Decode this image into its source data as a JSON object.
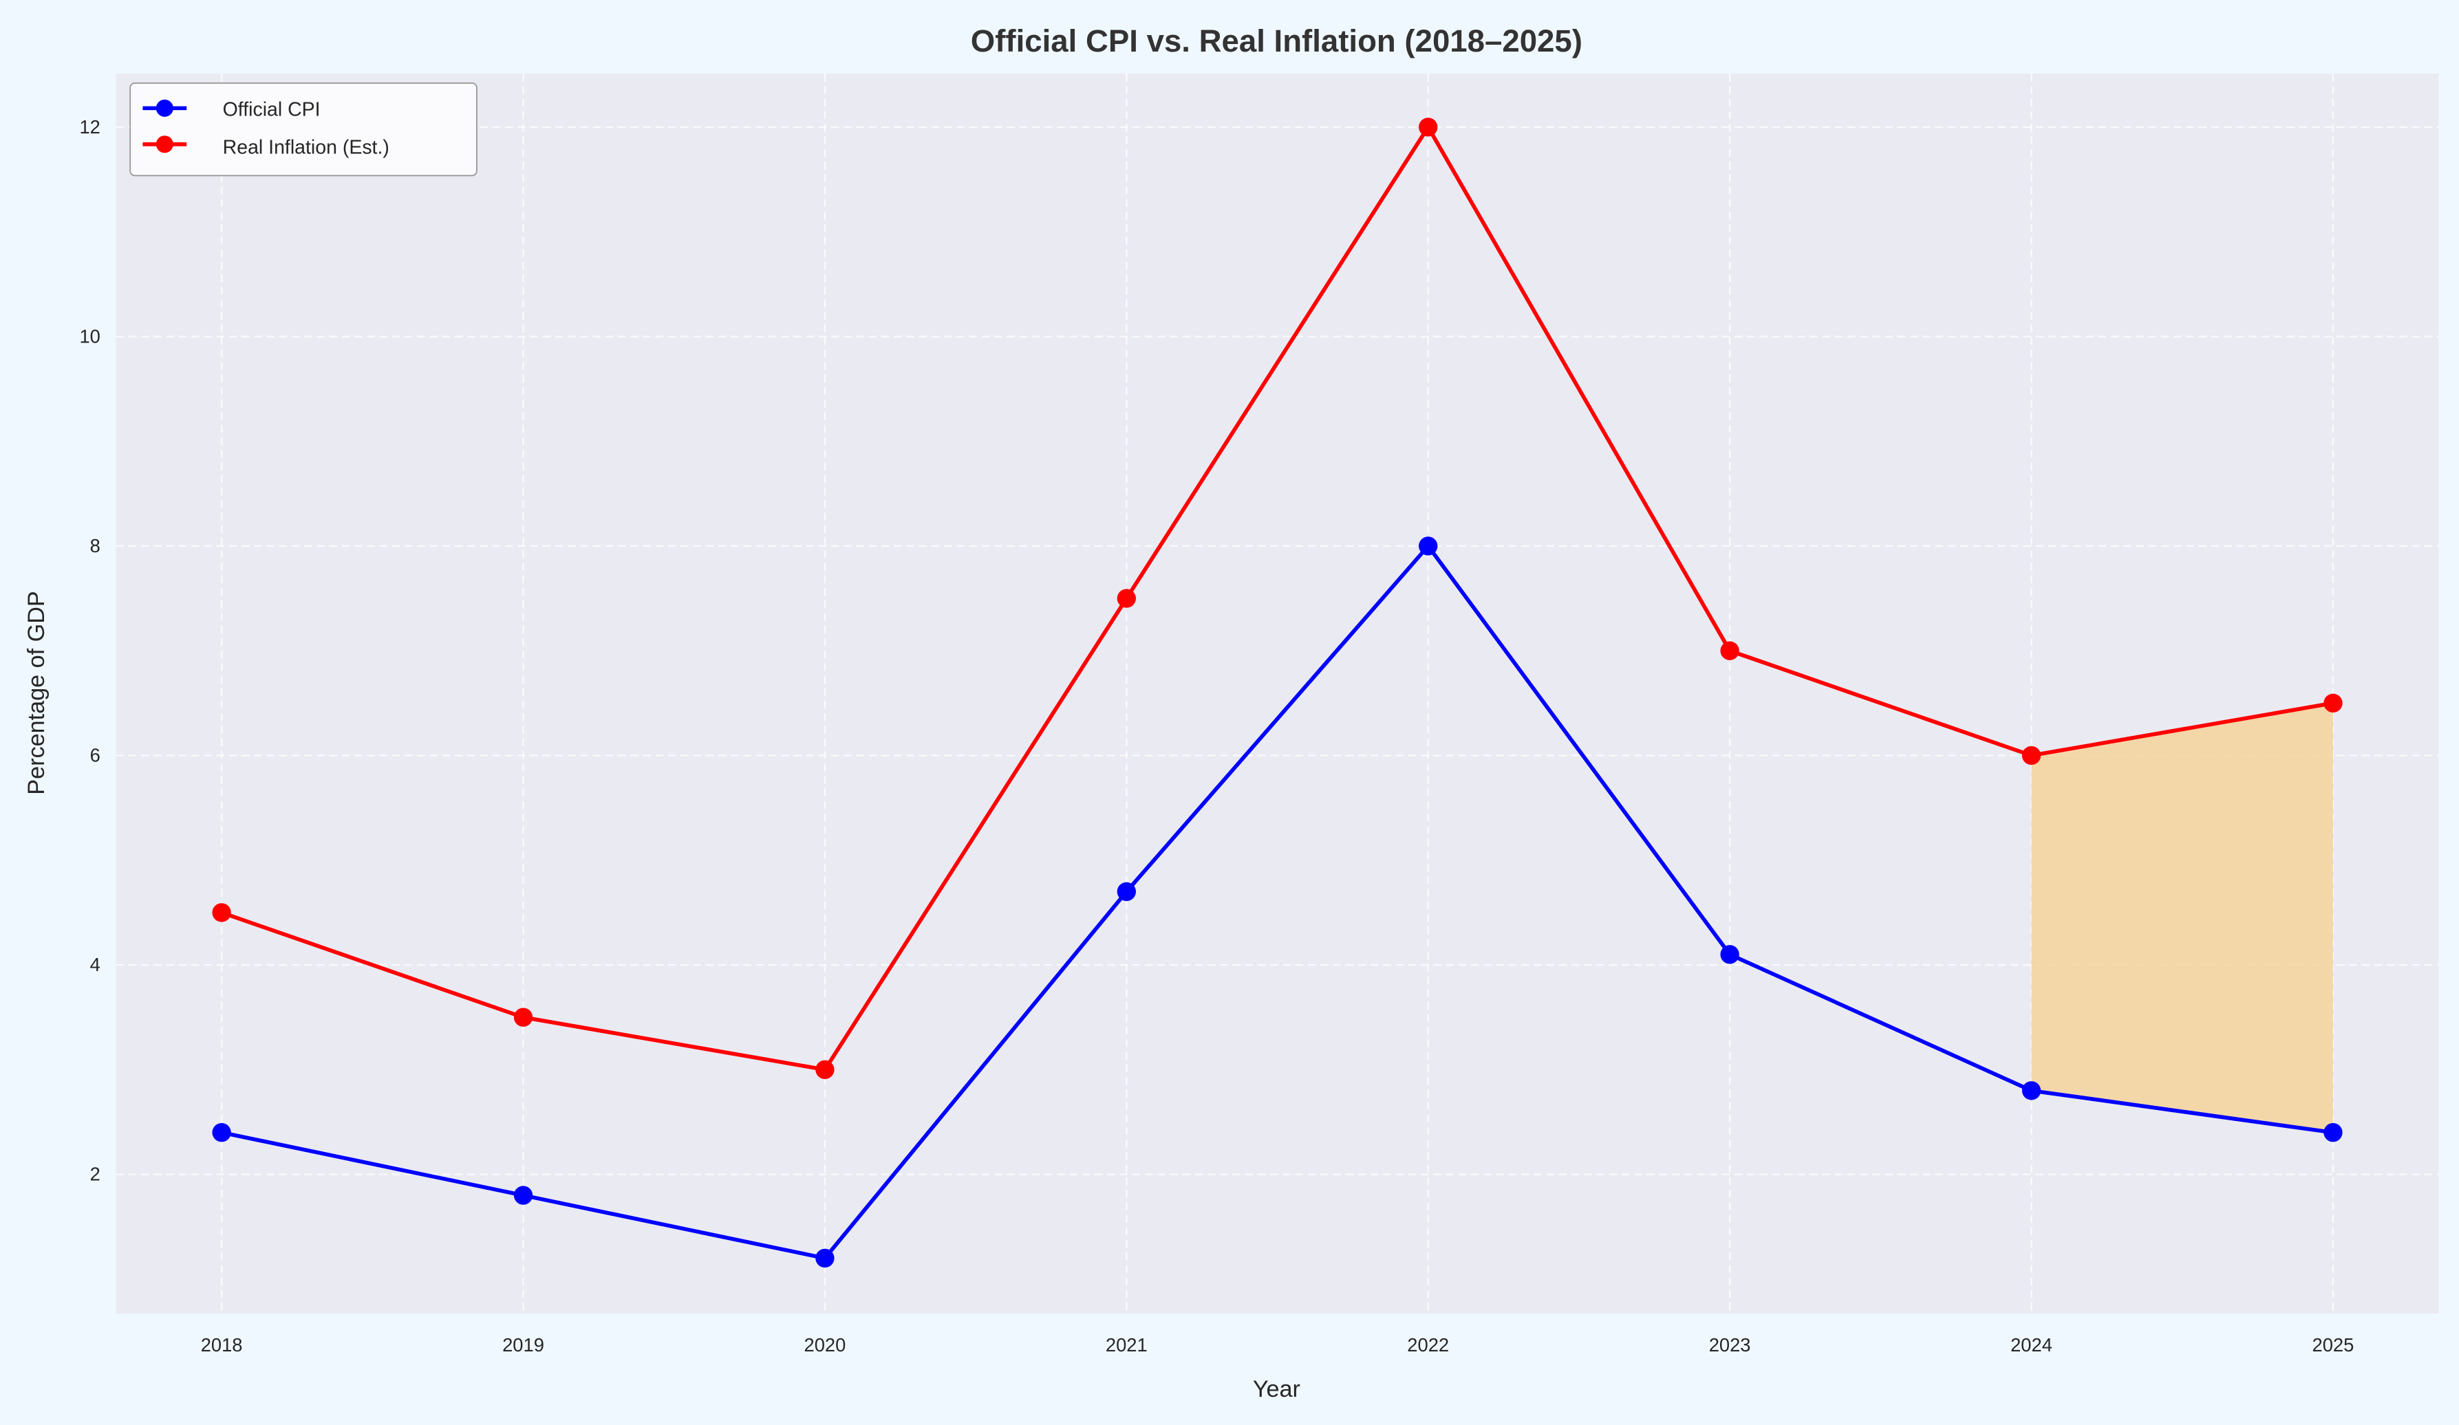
{
  "chart_data": {
    "type": "line",
    "title": "Official CPI vs. Real Inflation (2018–2025)",
    "xlabel": "Year",
    "ylabel": "Percentage of GDP",
    "x": [
      2018,
      2019,
      2020,
      2021,
      2022,
      2023,
      2024,
      2025
    ],
    "xticks": [
      "2018",
      "2019",
      "2020",
      "2021",
      "2022",
      "2023",
      "2024",
      "2025"
    ],
    "yticks": [
      "2",
      "4",
      "6",
      "8",
      "10",
      "12"
    ],
    "xlim": [
      2017.65,
      2025.35
    ],
    "ylim": [
      0.67,
      12.51
    ],
    "grid": true,
    "legend_position": "top-left",
    "series": [
      {
        "name": "Official CPI",
        "color": "#0000ff",
        "values": [
          2.4,
          1.8,
          1.2,
          4.7,
          8.0,
          4.1,
          2.8,
          2.4
        ]
      },
      {
        "name": "Real Inflation (Est.)",
        "color": "#ff0000",
        "values": [
          4.5,
          3.5,
          3.0,
          7.5,
          12.0,
          7.0,
          6.0,
          6.5
        ]
      }
    ],
    "shaded_region": {
      "x_from": 2024,
      "x_to": 2025,
      "between": [
        "Official CPI",
        "Real Inflation (Est.)"
      ],
      "color": "#f5d39b"
    },
    "background_color": "#eaeaf2",
    "figure_color": "#f0f8ff"
  }
}
